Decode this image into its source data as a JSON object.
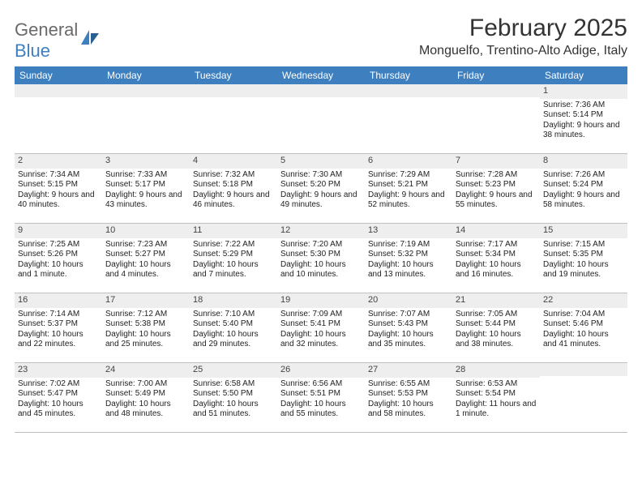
{
  "logo": {
    "text1": "General",
    "text2": "Blue"
  },
  "title": "February 2025",
  "location": "Monguelfo, Trentino-Alto Adige, Italy",
  "colors": {
    "header_bg": "#3e7fbf",
    "header_text": "#ffffff",
    "date_strip_bg": "#eeeeee",
    "border": "#c0c0c0",
    "text": "#222222",
    "logo_gray": "#6a6a6a",
    "logo_blue": "#3e7fbf"
  },
  "weekdays": [
    "Sunday",
    "Monday",
    "Tuesday",
    "Wednesday",
    "Thursday",
    "Friday",
    "Saturday"
  ],
  "weeks": [
    [
      {
        "date": "",
        "sunrise": "",
        "sunset": "",
        "daylight": ""
      },
      {
        "date": "",
        "sunrise": "",
        "sunset": "",
        "daylight": ""
      },
      {
        "date": "",
        "sunrise": "",
        "sunset": "",
        "daylight": ""
      },
      {
        "date": "",
        "sunrise": "",
        "sunset": "",
        "daylight": ""
      },
      {
        "date": "",
        "sunrise": "",
        "sunset": "",
        "daylight": ""
      },
      {
        "date": "",
        "sunrise": "",
        "sunset": "",
        "daylight": ""
      },
      {
        "date": "1",
        "sunrise": "Sunrise: 7:36 AM",
        "sunset": "Sunset: 5:14 PM",
        "daylight": "Daylight: 9 hours and 38 minutes."
      }
    ],
    [
      {
        "date": "2",
        "sunrise": "Sunrise: 7:34 AM",
        "sunset": "Sunset: 5:15 PM",
        "daylight": "Daylight: 9 hours and 40 minutes."
      },
      {
        "date": "3",
        "sunrise": "Sunrise: 7:33 AM",
        "sunset": "Sunset: 5:17 PM",
        "daylight": "Daylight: 9 hours and 43 minutes."
      },
      {
        "date": "4",
        "sunrise": "Sunrise: 7:32 AM",
        "sunset": "Sunset: 5:18 PM",
        "daylight": "Daylight: 9 hours and 46 minutes."
      },
      {
        "date": "5",
        "sunrise": "Sunrise: 7:30 AM",
        "sunset": "Sunset: 5:20 PM",
        "daylight": "Daylight: 9 hours and 49 minutes."
      },
      {
        "date": "6",
        "sunrise": "Sunrise: 7:29 AM",
        "sunset": "Sunset: 5:21 PM",
        "daylight": "Daylight: 9 hours and 52 minutes."
      },
      {
        "date": "7",
        "sunrise": "Sunrise: 7:28 AM",
        "sunset": "Sunset: 5:23 PM",
        "daylight": "Daylight: 9 hours and 55 minutes."
      },
      {
        "date": "8",
        "sunrise": "Sunrise: 7:26 AM",
        "sunset": "Sunset: 5:24 PM",
        "daylight": "Daylight: 9 hours and 58 minutes."
      }
    ],
    [
      {
        "date": "9",
        "sunrise": "Sunrise: 7:25 AM",
        "sunset": "Sunset: 5:26 PM",
        "daylight": "Daylight: 10 hours and 1 minute."
      },
      {
        "date": "10",
        "sunrise": "Sunrise: 7:23 AM",
        "sunset": "Sunset: 5:27 PM",
        "daylight": "Daylight: 10 hours and 4 minutes."
      },
      {
        "date": "11",
        "sunrise": "Sunrise: 7:22 AM",
        "sunset": "Sunset: 5:29 PM",
        "daylight": "Daylight: 10 hours and 7 minutes."
      },
      {
        "date": "12",
        "sunrise": "Sunrise: 7:20 AM",
        "sunset": "Sunset: 5:30 PM",
        "daylight": "Daylight: 10 hours and 10 minutes."
      },
      {
        "date": "13",
        "sunrise": "Sunrise: 7:19 AM",
        "sunset": "Sunset: 5:32 PM",
        "daylight": "Daylight: 10 hours and 13 minutes."
      },
      {
        "date": "14",
        "sunrise": "Sunrise: 7:17 AM",
        "sunset": "Sunset: 5:34 PM",
        "daylight": "Daylight: 10 hours and 16 minutes."
      },
      {
        "date": "15",
        "sunrise": "Sunrise: 7:15 AM",
        "sunset": "Sunset: 5:35 PM",
        "daylight": "Daylight: 10 hours and 19 minutes."
      }
    ],
    [
      {
        "date": "16",
        "sunrise": "Sunrise: 7:14 AM",
        "sunset": "Sunset: 5:37 PM",
        "daylight": "Daylight: 10 hours and 22 minutes."
      },
      {
        "date": "17",
        "sunrise": "Sunrise: 7:12 AM",
        "sunset": "Sunset: 5:38 PM",
        "daylight": "Daylight: 10 hours and 25 minutes."
      },
      {
        "date": "18",
        "sunrise": "Sunrise: 7:10 AM",
        "sunset": "Sunset: 5:40 PM",
        "daylight": "Daylight: 10 hours and 29 minutes."
      },
      {
        "date": "19",
        "sunrise": "Sunrise: 7:09 AM",
        "sunset": "Sunset: 5:41 PM",
        "daylight": "Daylight: 10 hours and 32 minutes."
      },
      {
        "date": "20",
        "sunrise": "Sunrise: 7:07 AM",
        "sunset": "Sunset: 5:43 PM",
        "daylight": "Daylight: 10 hours and 35 minutes."
      },
      {
        "date": "21",
        "sunrise": "Sunrise: 7:05 AM",
        "sunset": "Sunset: 5:44 PM",
        "daylight": "Daylight: 10 hours and 38 minutes."
      },
      {
        "date": "22",
        "sunrise": "Sunrise: 7:04 AM",
        "sunset": "Sunset: 5:46 PM",
        "daylight": "Daylight: 10 hours and 41 minutes."
      }
    ],
    [
      {
        "date": "23",
        "sunrise": "Sunrise: 7:02 AM",
        "sunset": "Sunset: 5:47 PM",
        "daylight": "Daylight: 10 hours and 45 minutes."
      },
      {
        "date": "24",
        "sunrise": "Sunrise: 7:00 AM",
        "sunset": "Sunset: 5:49 PM",
        "daylight": "Daylight: 10 hours and 48 minutes."
      },
      {
        "date": "25",
        "sunrise": "Sunrise: 6:58 AM",
        "sunset": "Sunset: 5:50 PM",
        "daylight": "Daylight: 10 hours and 51 minutes."
      },
      {
        "date": "26",
        "sunrise": "Sunrise: 6:56 AM",
        "sunset": "Sunset: 5:51 PM",
        "daylight": "Daylight: 10 hours and 55 minutes."
      },
      {
        "date": "27",
        "sunrise": "Sunrise: 6:55 AM",
        "sunset": "Sunset: 5:53 PM",
        "daylight": "Daylight: 10 hours and 58 minutes."
      },
      {
        "date": "28",
        "sunrise": "Sunrise: 6:53 AM",
        "sunset": "Sunset: 5:54 PM",
        "daylight": "Daylight: 11 hours and 1 minute."
      },
      {
        "date": "",
        "sunrise": "",
        "sunset": "",
        "daylight": ""
      }
    ]
  ]
}
